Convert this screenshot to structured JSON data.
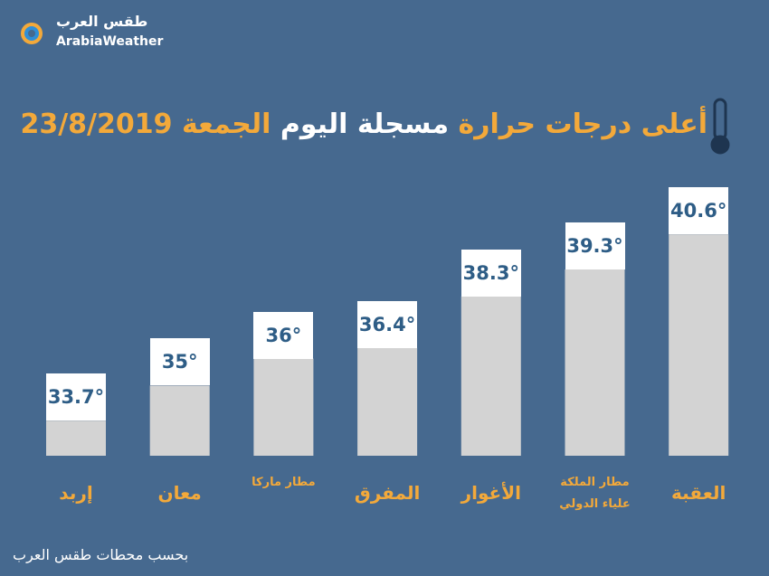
{
  "brand": {
    "name_ar": "طقس العرب",
    "name_en": "ArabiaWeather"
  },
  "source": "بحسب محطات طقس العرب",
  "chart_data": {
    "type": "bar",
    "title": [
      "أعلى درجات حرارة",
      "مسجلة اليوم",
      "الجمعة 23/8/2019"
    ],
    "title_colors": [
      "#f3a93a",
      "#ffffff",
      "#f3a93a"
    ],
    "categories": [
      "إربد",
      "معان",
      "مطار ماركا",
      "المفرق",
      "الأغوار",
      "مطار الملكة علياء الدولي",
      "العقبة"
    ],
    "values": [
      33.7,
      35,
      36,
      36.4,
      38.3,
      39.3,
      40.6
    ],
    "value_labels": [
      "33.7°",
      "35°",
      "36°",
      "36.4°",
      "38.3°",
      "39.3°",
      "40.6°"
    ],
    "color": "#d3d3d3",
    "ylim": [
      32.4,
      41.1
    ]
  }
}
